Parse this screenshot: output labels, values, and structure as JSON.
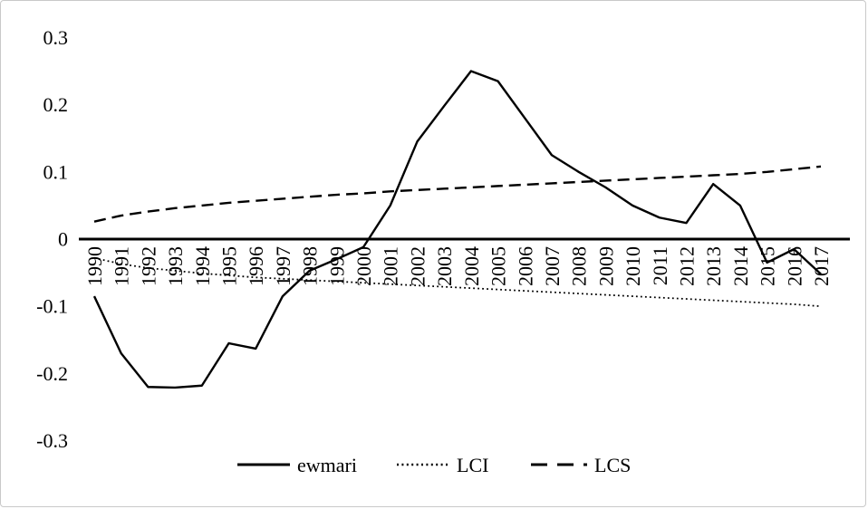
{
  "chart_data": {
    "type": "line",
    "title": "",
    "xlabel": "",
    "ylabel": "",
    "ylim": [
      -0.3,
      0.3
    ],
    "grid": false,
    "legend_position": "bottom-center",
    "line_color": "#000000",
    "x": [
      1990,
      1991,
      1992,
      1993,
      1994,
      1995,
      1996,
      1997,
      1998,
      1999,
      2000,
      2001,
      2002,
      2003,
      2004,
      2005,
      2006,
      2007,
      2008,
      2009,
      2010,
      2011,
      2012,
      2013,
      2014,
      2015,
      2016,
      2017
    ],
    "y_ticks": [
      0.3,
      0.2,
      0.1,
      0,
      -0.1,
      -0.2,
      -0.3
    ],
    "y_tick_labels": [
      "0.3",
      "0.2",
      "0.1",
      "0",
      "-0.1",
      "-0.2",
      "-0.3"
    ],
    "series": [
      {
        "name": "ewmari",
        "style": "solid",
        "values": [
          -0.085,
          -0.17,
          -0.22,
          -0.221,
          -0.218,
          -0.155,
          -0.163,
          -0.085,
          -0.047,
          -0.03,
          -0.012,
          0.05,
          0.145,
          0.198,
          0.25,
          0.235,
          0.18,
          0.125,
          0.1,
          0.077,
          0.05,
          0.032,
          0.024,
          0.082,
          0.05,
          -0.035,
          -0.015,
          -0.052
        ]
      },
      {
        "name": "LCI",
        "style": "dotted",
        "values": [
          -0.028,
          -0.037,
          -0.043,
          -0.047,
          -0.051,
          -0.054,
          -0.057,
          -0.059,
          -0.061,
          -0.063,
          -0.065,
          -0.067,
          -0.069,
          -0.071,
          -0.073,
          -0.075,
          -0.077,
          -0.079,
          -0.081,
          -0.083,
          -0.085,
          -0.087,
          -0.089,
          -0.091,
          -0.093,
          -0.095,
          -0.097,
          -0.1
        ]
      },
      {
        "name": "LCS",
        "style": "dashed",
        "values": [
          0.026,
          0.035,
          0.041,
          0.046,
          0.05,
          0.054,
          0.057,
          0.06,
          0.063,
          0.066,
          0.068,
          0.071,
          0.073,
          0.075,
          0.077,
          0.079,
          0.081,
          0.083,
          0.085,
          0.087,
          0.089,
          0.091,
          0.093,
          0.095,
          0.097,
          0.1,
          0.104,
          0.108
        ]
      }
    ]
  }
}
